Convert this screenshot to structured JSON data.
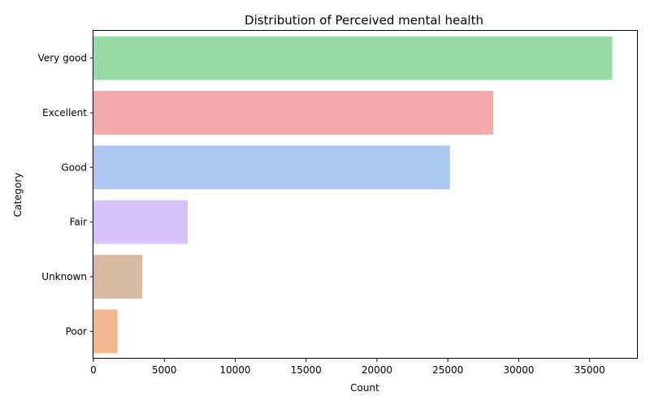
{
  "chart_data": {
    "type": "bar",
    "orientation": "horizontal",
    "title": "Distribution of Perceived mental health",
    "xlabel": "Count",
    "ylabel": "Category",
    "categories": [
      "Very good",
      "Excellent",
      "Good",
      "Fair",
      "Unknown",
      "Poor"
    ],
    "values": [
      36600,
      28200,
      25150,
      6650,
      3450,
      1700
    ],
    "colors": [
      "#98d9a8",
      "#f4aaaa",
      "#aac8f0",
      "#d5c2fb",
      "#d7bba1",
      "#f3b891"
    ],
    "xlim": [
      0,
      38400
    ],
    "xticks": [
      0,
      5000,
      10000,
      15000,
      20000,
      25000,
      30000,
      35000
    ],
    "grid": false,
    "legend": false
  }
}
